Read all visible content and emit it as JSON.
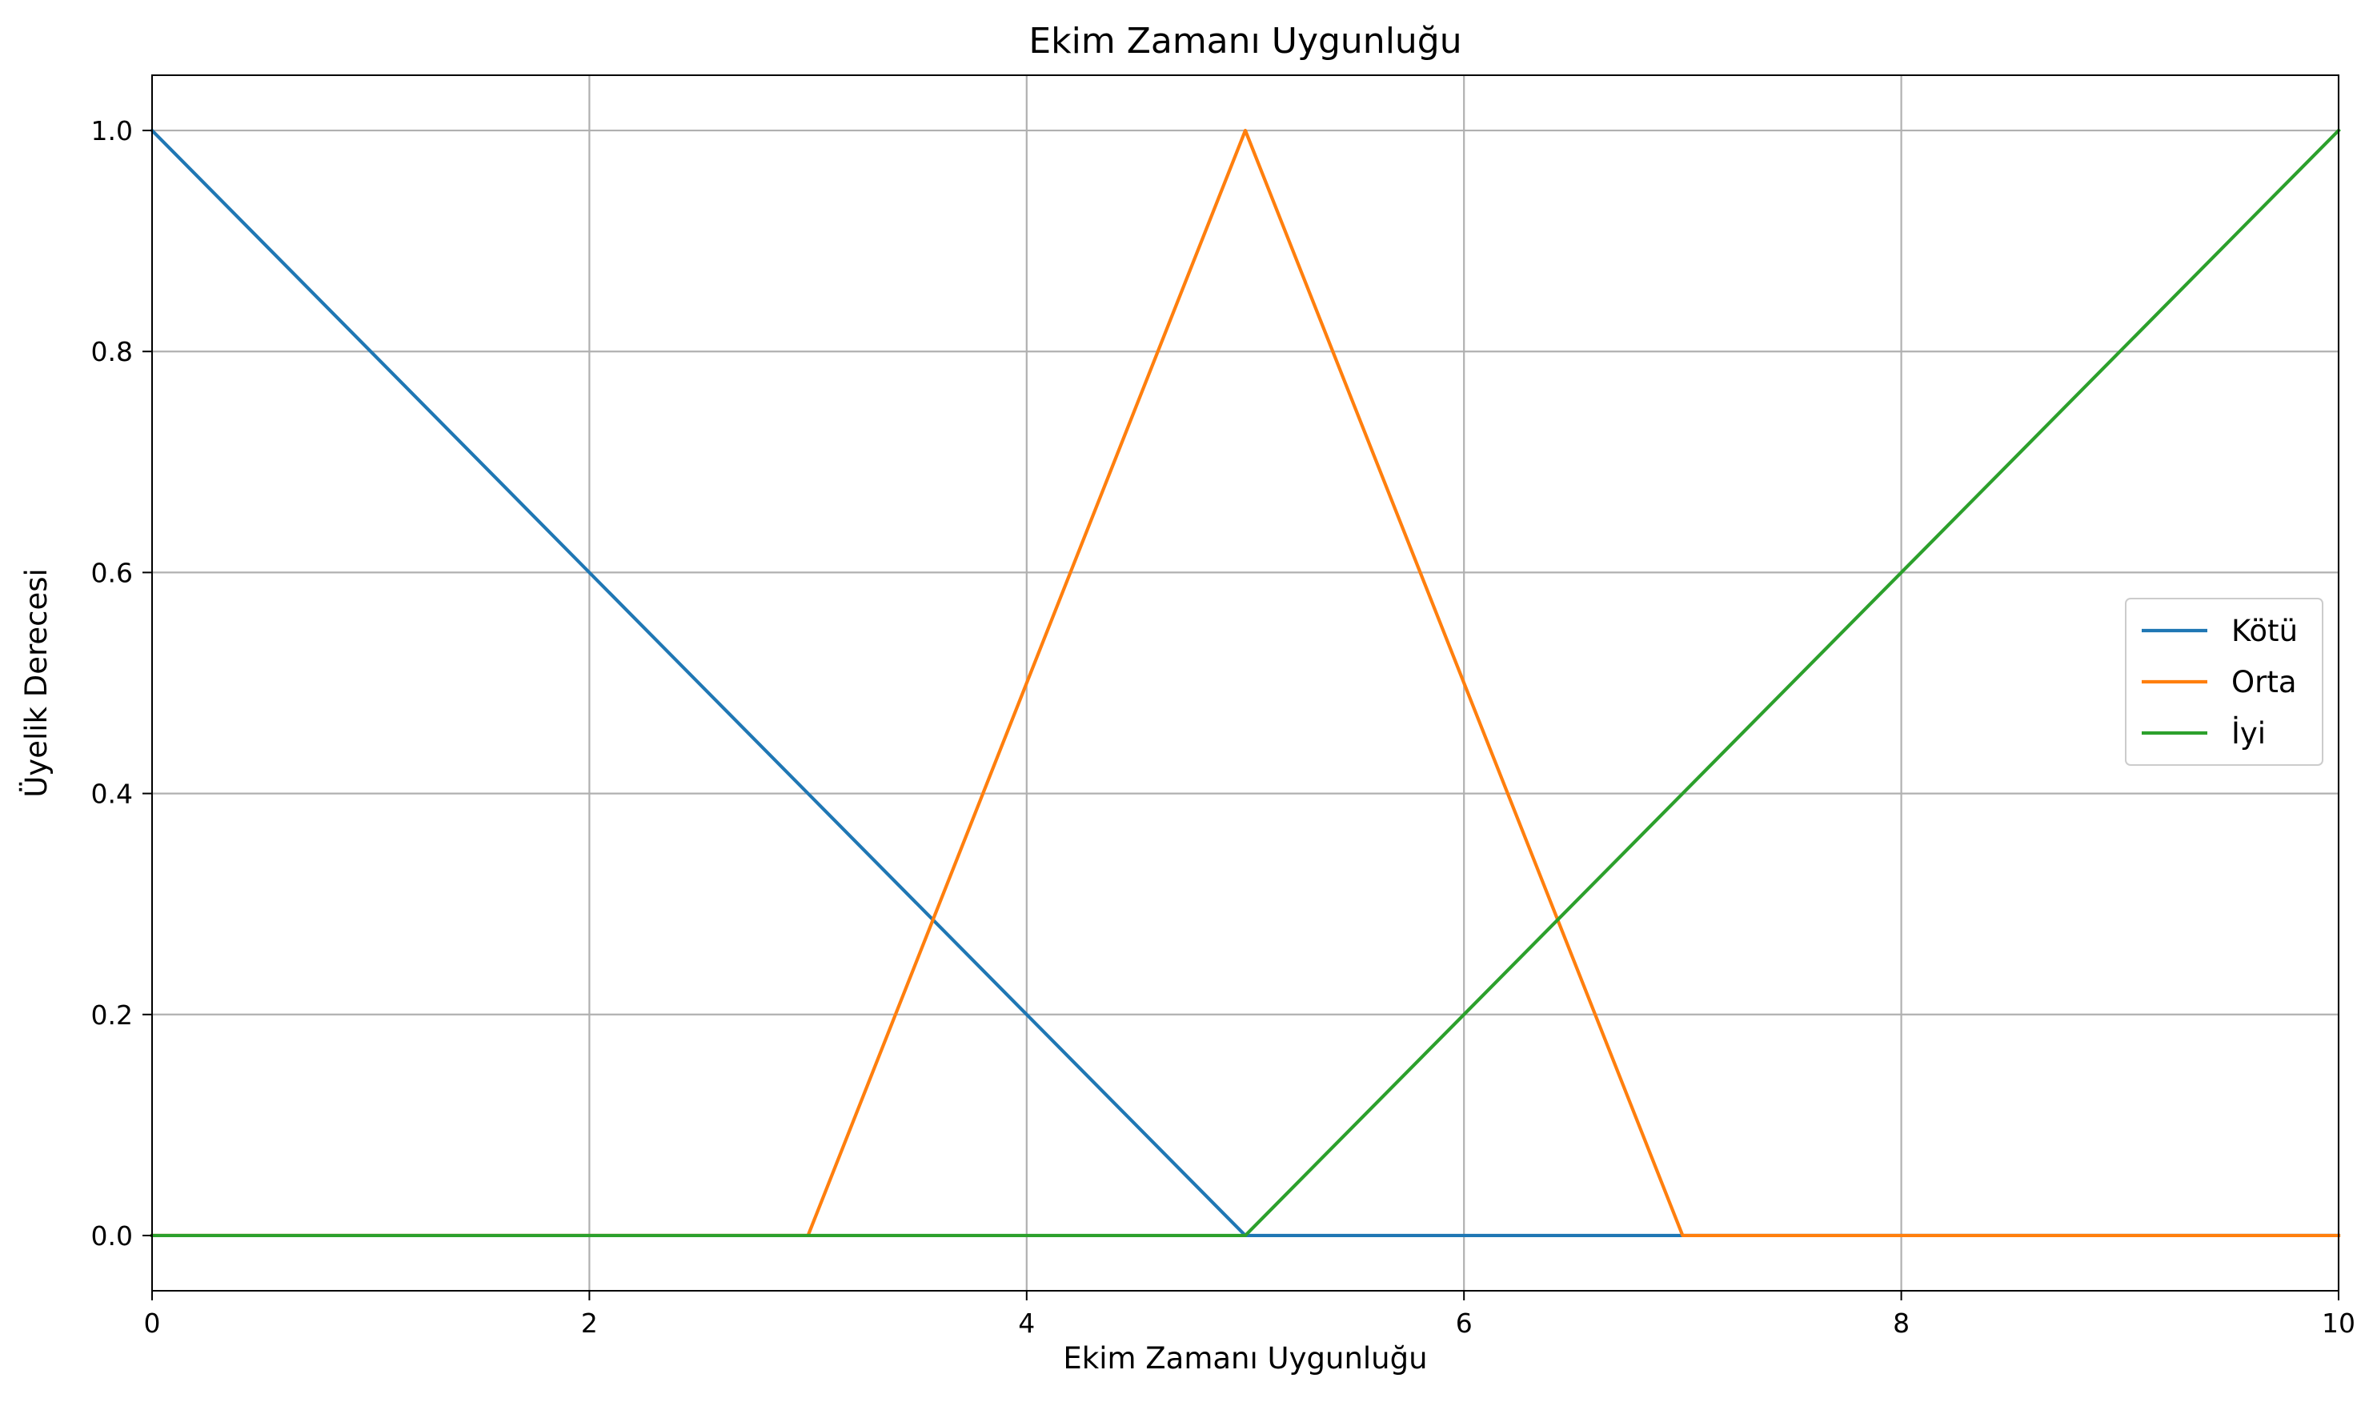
{
  "chart_data": {
    "type": "line",
    "title": "Ekim Zamanı Uygunluğu",
    "xlabel": "Ekim Zamanı Uygunluğu",
    "ylabel": "Üyelik Derecesi",
    "xlim": [
      0,
      10
    ],
    "ylim": [
      -0.05,
      1.05
    ],
    "xticks": [
      0,
      2,
      4,
      6,
      8,
      10
    ],
    "xtick_labels": [
      "0",
      "2",
      "4",
      "6",
      "8",
      "10"
    ],
    "yticks": [
      0.0,
      0.2,
      0.4,
      0.6,
      0.8,
      1.0
    ],
    "ytick_labels": [
      "0.0",
      "0.2",
      "0.4",
      "0.6",
      "0.8",
      "1.0"
    ],
    "grid": true,
    "legend_position": "center-right",
    "series": [
      {
        "name": "Kötü",
        "color": "#1f77b4",
        "x": [
          0,
          5,
          10
        ],
        "y": [
          1,
          0,
          0
        ]
      },
      {
        "name": "Orta",
        "color": "#ff7f0e",
        "x": [
          0,
          3,
          5,
          7,
          10
        ],
        "y": [
          0,
          0,
          1,
          0,
          0
        ]
      },
      {
        "name": "İyi",
        "color": "#2ca02c",
        "x": [
          0,
          5,
          10
        ],
        "y": [
          0,
          0,
          1
        ]
      }
    ]
  }
}
